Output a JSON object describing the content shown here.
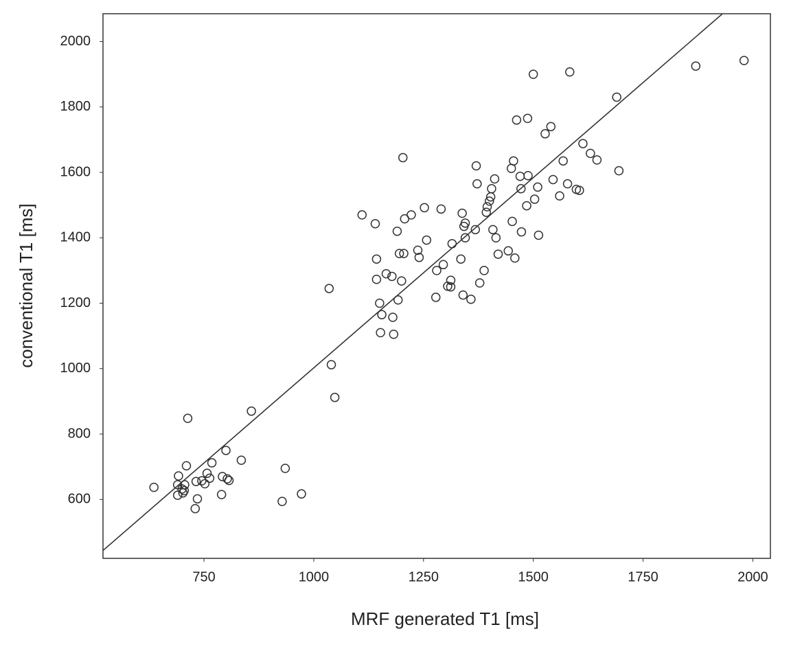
{
  "chart_data": {
    "type": "scatter",
    "x_label": "MRF generated T1 [ms]",
    "y_label": "conventional T1 [ms]",
    "xlim": [
      520,
      2040
    ],
    "ylim": [
      420,
      2085
    ],
    "xticks": [
      750,
      1000,
      1250,
      1500,
      1750,
      2000
    ],
    "yticks": [
      600,
      800,
      1000,
      1200,
      1400,
      1600,
      1800,
      2000
    ],
    "grid": false,
    "color": "#333333",
    "fit_line": {
      "x": [
        520,
        1930
      ],
      "y": [
        444,
        2084
      ]
    },
    "x": [
      636,
      690,
      690,
      692,
      700,
      702,
      705,
      706,
      710,
      713,
      730,
      732,
      735,
      745,
      752,
      757,
      763,
      768,
      790,
      792,
      800,
      803,
      807,
      835,
      858,
      928,
      935,
      972,
      1035,
      1040,
      1048,
      1110,
      1140,
      1143,
      1143,
      1150,
      1152,
      1155,
      1165,
      1178,
      1180,
      1182,
      1190,
      1192,
      1195,
      1200,
      1203,
      1205,
      1207,
      1222,
      1237,
      1240,
      1252,
      1257,
      1278,
      1280,
      1290,
      1295,
      1305,
      1312,
      1312,
      1315,
      1335,
      1338,
      1340,
      1342,
      1345,
      1345,
      1358,
      1368,
      1370,
      1372,
      1378,
      1388,
      1393,
      1395,
      1400,
      1403,
      1405,
      1408,
      1412,
      1415,
      1420,
      1443,
      1450,
      1452,
      1455,
      1458,
      1462,
      1470,
      1472,
      1473,
      1485,
      1487,
      1488,
      1500,
      1503,
      1510,
      1512,
      1527,
      1540,
      1545,
      1560,
      1568,
      1578,
      1583,
      1598,
      1605,
      1613,
      1630,
      1645,
      1690,
      1695,
      1870,
      1980
    ],
    "y": [
      637,
      645,
      613,
      672,
      632,
      620,
      627,
      645,
      703,
      848,
      572,
      655,
      602,
      657,
      648,
      680,
      665,
      712,
      615,
      670,
      750,
      663,
      658,
      720,
      870,
      594,
      695,
      617,
      1245,
      1012,
      912,
      1470,
      1443,
      1335,
      1273,
      1200,
      1110,
      1165,
      1290,
      1282,
      1157,
      1105,
      1420,
      1210,
      1352,
      1268,
      1645,
      1352,
      1458,
      1470,
      1362,
      1340,
      1492,
      1393,
      1218,
      1300,
      1488,
      1318,
      1252,
      1270,
      1250,
      1382,
      1335,
      1475,
      1225,
      1435,
      1445,
      1400,
      1212,
      1425,
      1620,
      1565,
      1262,
      1300,
      1478,
      1495,
      1512,
      1525,
      1550,
      1425,
      1580,
      1400,
      1350,
      1360,
      1612,
      1450,
      1635,
      1338,
      1760,
      1588,
      1550,
      1418,
      1498,
      1765,
      1590,
      1900,
      1518,
      1555,
      1408,
      1718,
      1740,
      1578,
      1528,
      1635,
      1565,
      1907,
      1548,
      1545,
      1688,
      1658,
      1638,
      1830,
      1605,
      1925,
      1942
    ]
  }
}
